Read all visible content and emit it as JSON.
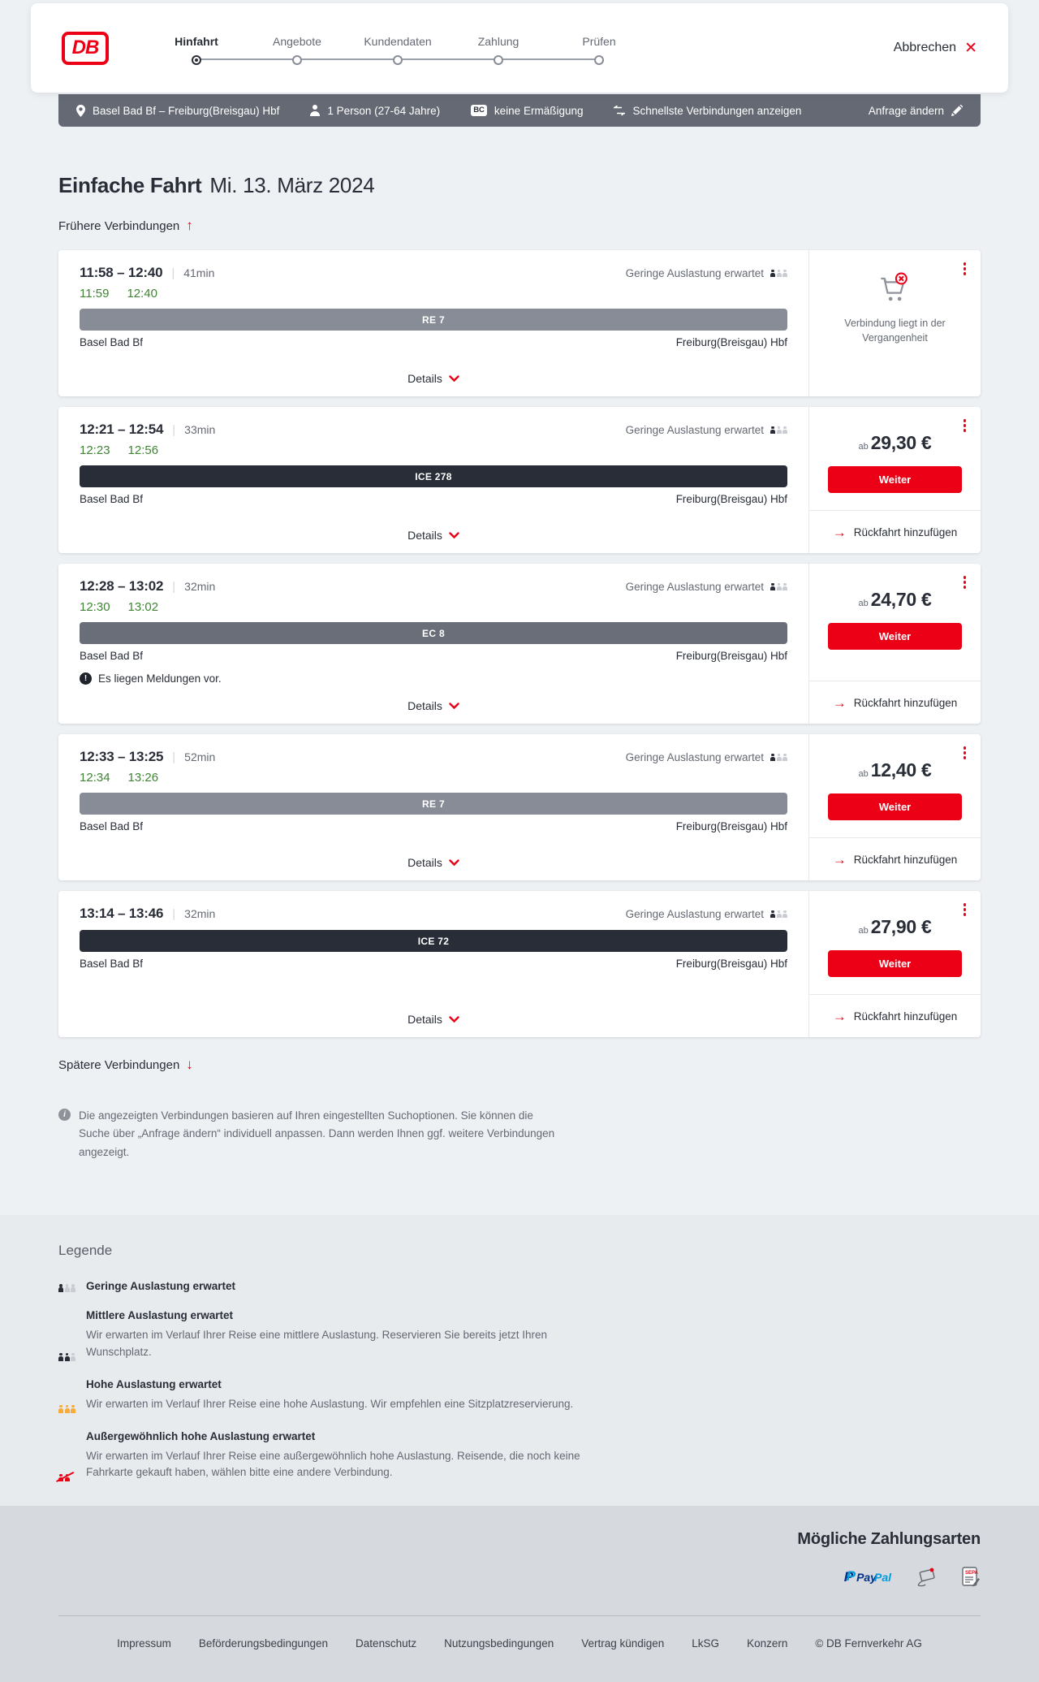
{
  "colors": {
    "brand_red": "#ec0016",
    "dark": "#282d37",
    "gray": "#646973",
    "green_realtime": "#408335",
    "train_bar_re": "#878c96",
    "train_bar_ec": "#696e78",
    "train_bar_ice": "#282d37",
    "occupancy_low": "#282d37",
    "occupancy_faint": "#c9cdd3",
    "occupancy_high": "#f8ab37",
    "occupancy_exceptional": "#ec0016"
  },
  "header": {
    "logo_text": "DB",
    "steps": [
      {
        "label": "Hinfahrt",
        "active": true
      },
      {
        "label": "Angebote",
        "active": false
      },
      {
        "label": "Kundendaten",
        "active": false
      },
      {
        "label": "Zahlung",
        "active": false
      },
      {
        "label": "Prüfen",
        "active": false
      }
    ],
    "cancel_label": "Abbrechen"
  },
  "summary_bar": {
    "route": "Basel Bad Bf – Freiburg(Breisgau) Hbf",
    "passengers": "1 Person (27-64 Jahre)",
    "bahncard_badge": "BC",
    "discount": "keine Ermäßigung",
    "fastest": "Schnellste Verbindungen anzeigen",
    "change_request": "Anfrage ändern"
  },
  "main": {
    "title": "Einfache Fahrt",
    "date": "Mi. 13. März 2024",
    "earlier_link": "Frühere Verbindungen",
    "later_link": "Spätere Verbindungen",
    "details_label": "Details",
    "price_prefix": "ab",
    "weiter_label": "Weiter",
    "return_label": "Rückfahrt hinzufügen",
    "connections": [
      {
        "times": "11:58 – 12:40",
        "duration": "41min",
        "occupancy": "Geringe Auslastung erwartet",
        "real_times": [
          "11:59",
          "12:40"
        ],
        "train": "RE 7",
        "train_class": "re",
        "from": "Basel Bad Bf",
        "to": "Freiburg(Breisgau) Hbf",
        "past": true,
        "past_note": "Verbindung liegt in der Vergangenheit"
      },
      {
        "times": "12:21 – 12:54",
        "duration": "33min",
        "occupancy": "Geringe Auslastung erwartet",
        "real_times": [
          "12:23",
          "12:56"
        ],
        "train": "ICE 278",
        "train_class": "ice",
        "from": "Basel Bad Bf",
        "to": "Freiburg(Breisgau) Hbf",
        "price": "29,30 €"
      },
      {
        "times": "12:28 – 13:02",
        "duration": "32min",
        "occupancy": "Geringe Auslastung erwartet",
        "real_times": [
          "12:30",
          "13:02"
        ],
        "train": "EC 8",
        "train_class": "ec",
        "from": "Basel Bad Bf",
        "to": "Freiburg(Breisgau) Hbf",
        "price": "24,70 €",
        "message": "Es liegen Meldungen vor."
      },
      {
        "times": "12:33 – 13:25",
        "duration": "52min",
        "occupancy": "Geringe Auslastung erwartet",
        "real_times": [
          "12:34",
          "13:26"
        ],
        "train": "RE 7",
        "train_class": "re",
        "from": "Basel Bad Bf",
        "to": "Freiburg(Breisgau) Hbf",
        "price": "12,40 €"
      },
      {
        "times": "13:14 – 13:46",
        "duration": "32min",
        "occupancy": "Geringe Auslastung erwartet",
        "real_times": null,
        "train": "ICE 72",
        "train_class": "ice",
        "from": "Basel Bad Bf",
        "to": "Freiburg(Breisgau) Hbf",
        "price": "27,90 €"
      }
    ],
    "info_text": "Die angezeigten Verbindungen basieren auf Ihren eingestellten Suchoptionen. Sie können die Suche über „Anfrage ändern“ individuell anpassen. Dann werden Ihnen ggf. weitere Verbindungen angezeigt."
  },
  "legend": {
    "title": "Legende",
    "items": [
      {
        "level": "low",
        "label": "Geringe Auslastung erwartet",
        "desc": ""
      },
      {
        "level": "medium",
        "label": "Mittlere Auslastung erwartet",
        "desc": "Wir erwarten im Verlauf Ihrer Reise eine mittlere Auslastung. Reservieren Sie bereits jetzt Ihren Wunschplatz."
      },
      {
        "level": "high",
        "label": "Hohe Auslastung erwartet",
        "desc": "Wir erwarten im Verlauf Ihrer Reise eine hohe Auslastung. Wir empfehlen eine Sitzplatzreservierung."
      },
      {
        "level": "exceptional",
        "label": "Außergewöhnlich hohe Auslastung erwartet",
        "desc": "Wir erwarten im Verlauf Ihrer Reise eine außergewöhnlich hohe Auslastung. Reisende, die noch keine Fahrkarte gekauft haben, wählen bitte eine andere Verbindung."
      }
    ]
  },
  "payment": {
    "title": "Mögliche Zahlungsarten",
    "methods": [
      {
        "name": "paypal",
        "label": "PayPal"
      },
      {
        "name": "credit-card",
        "label": ""
      },
      {
        "name": "sepa",
        "label": "SEPA"
      }
    ]
  },
  "footer": {
    "links": [
      "Impressum",
      "Beförderungsbedingungen",
      "Datenschutz",
      "Nutzungsbedingungen",
      "Vertrag kündigen",
      "LkSG",
      "Konzern"
    ],
    "copyright": "© DB Fernverkehr AG"
  }
}
